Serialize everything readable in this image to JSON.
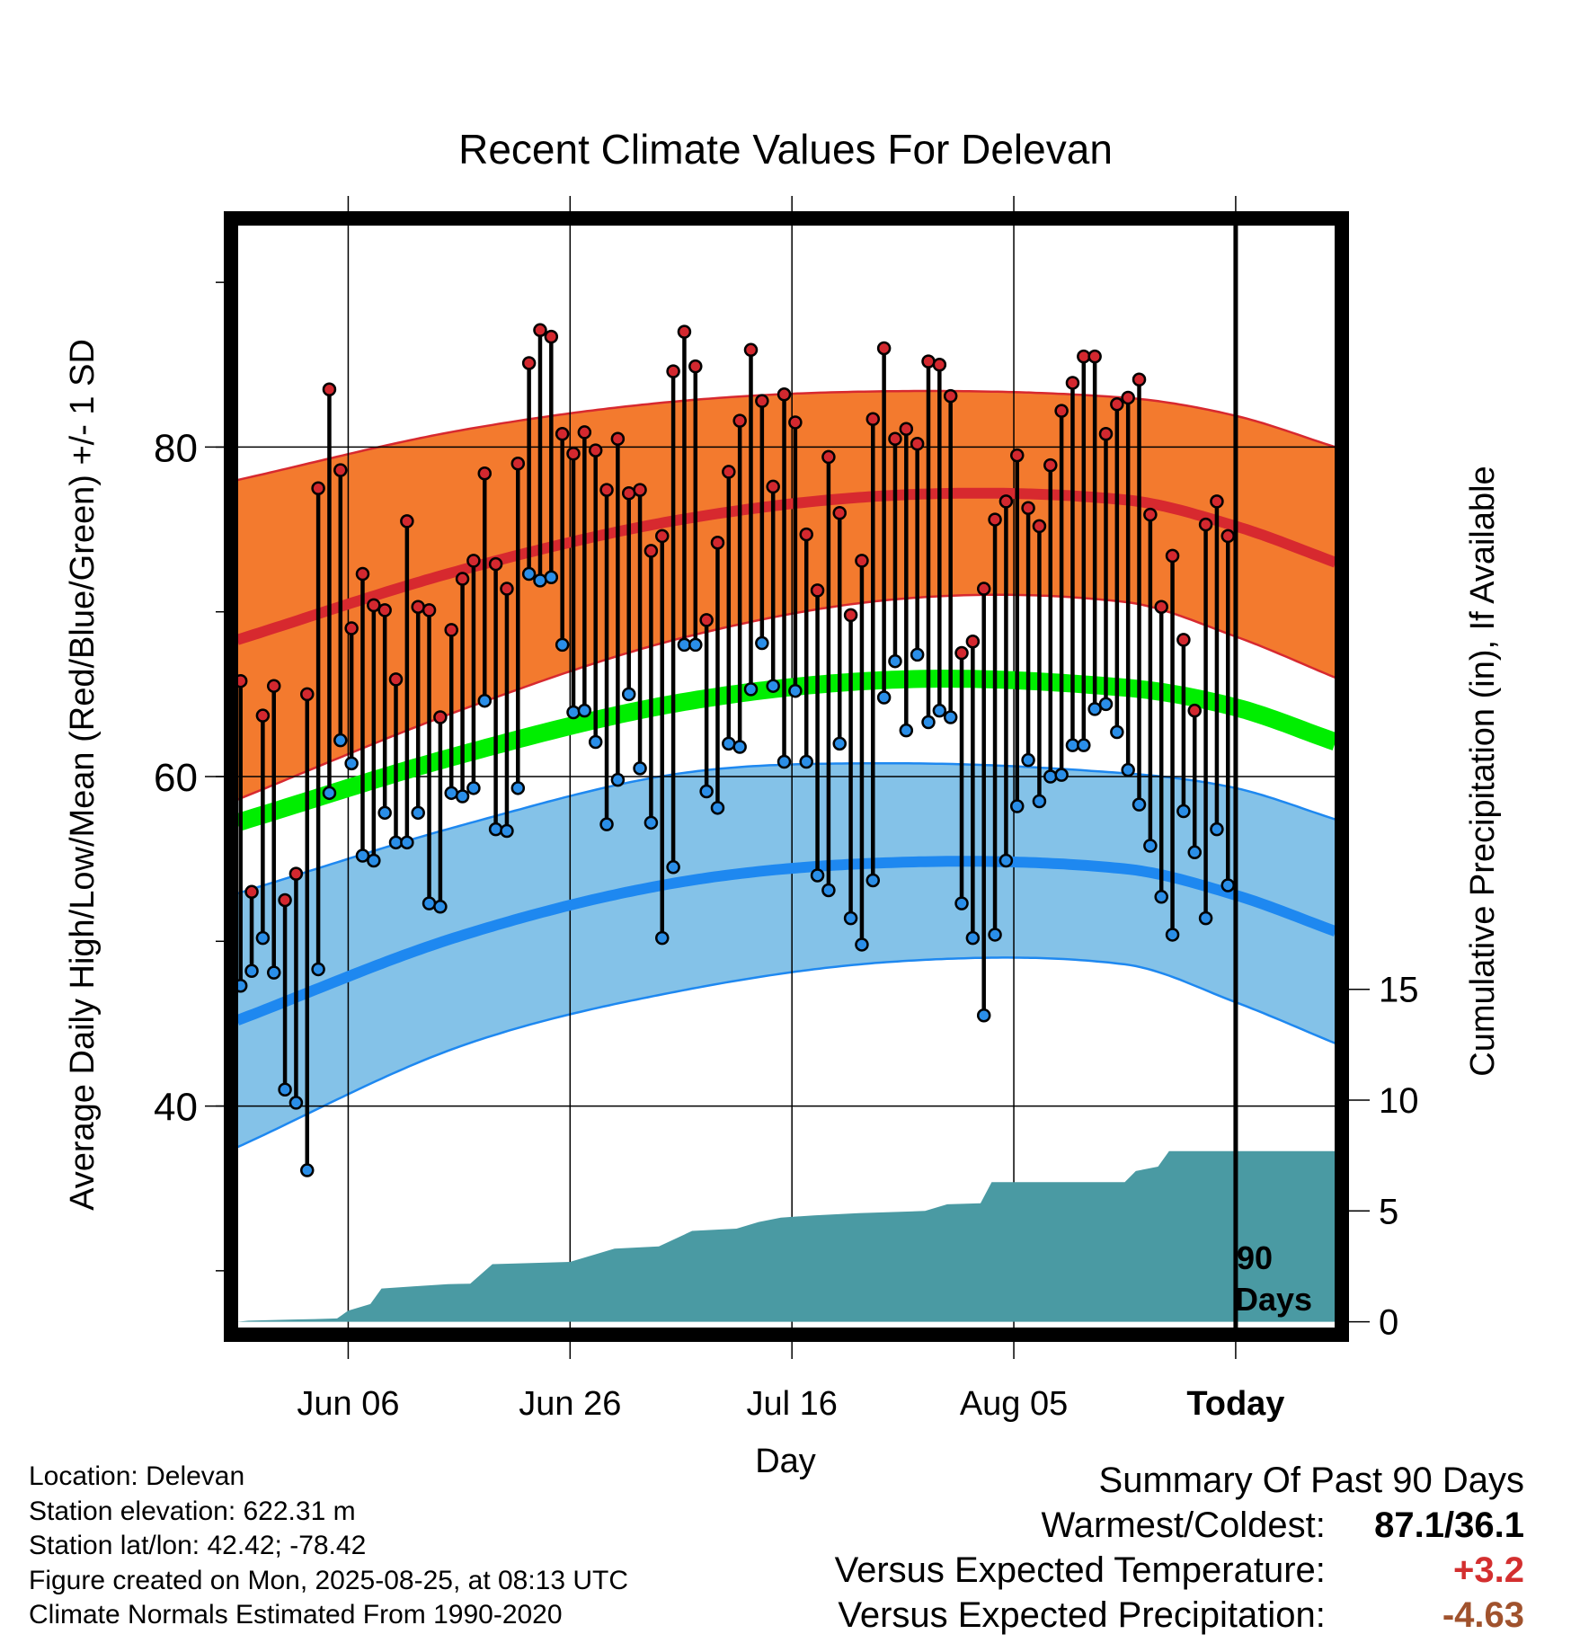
{
  "chart_data": {
    "type": "line",
    "title": "Recent Climate Values For Delevan",
    "xlabel": "Day",
    "ylabel": "Average Daily High/Low/Mean (Red/Blue/Green) +/- 1 SD",
    "y2label": "Cumulative Precipitation (in), If Available",
    "x_ticks": [
      "Jun 06",
      "Jun 26",
      "Jul 16",
      "Aug 05",
      "Today"
    ],
    "y_ticks": [
      "40",
      "60",
      "80"
    ],
    "y2_ticks": [
      "0",
      "5",
      "10",
      "15"
    ],
    "ylim": [
      26.5,
      93.5
    ],
    "y2lim": [
      -0.3,
      49.5
    ],
    "x_range_days": [
      -90,
      9
    ],
    "annotation": "90\nDays",
    "normal_high": [
      {
        "day": -90,
        "mean": 68.3,
        "sd": 9.7
      },
      {
        "day": -70,
        "mean": 72.5,
        "sd": 8.5
      },
      {
        "day": -50,
        "mean": 75.6,
        "sd": 7.2
      },
      {
        "day": -30,
        "mean": 77.1,
        "sd": 6.3
      },
      {
        "day": -10,
        "mean": 76.8,
        "sd": 6.2
      },
      {
        "day": 0,
        "mean": 75.2,
        "sd": 6.7
      },
      {
        "day": 9,
        "mean": 73.0,
        "sd": 7.0
      }
    ],
    "normal_mean": [
      {
        "day": -90,
        "mean": 57.2
      },
      {
        "day": -70,
        "mean": 61.3
      },
      {
        "day": -50,
        "mean": 64.5
      },
      {
        "day": -30,
        "mean": 65.9
      },
      {
        "day": -10,
        "mean": 65.4
      },
      {
        "day": 0,
        "mean": 64.2
      },
      {
        "day": 9,
        "mean": 62.1
      }
    ],
    "normal_low": [
      {
        "day": -90,
        "mean": 45.2,
        "sd": 7.7
      },
      {
        "day": -70,
        "mean": 50.3,
        "sd": 6.7
      },
      {
        "day": -50,
        "mean": 53.6,
        "sd": 6.6
      },
      {
        "day": -30,
        "mean": 54.8,
        "sd": 6.0
      },
      {
        "day": -10,
        "mean": 54.4,
        "sd": 5.8
      },
      {
        "day": 0,
        "mean": 52.8,
        "sd": 6.5
      },
      {
        "day": 9,
        "mean": 50.6,
        "sd": 6.8
      }
    ],
    "daily_high": [
      65.8,
      53.0,
      63.7,
      65.5,
      52.5,
      54.1,
      65.0,
      77.5,
      83.5,
      78.6,
      69.0,
      72.3,
      70.4,
      70.1,
      65.9,
      75.5,
      70.3,
      70.1,
      63.6,
      68.9,
      72.0,
      73.1,
      78.4,
      72.9,
      71.4,
      79.0,
      85.1,
      87.1,
      86.7,
      80.8,
      79.6,
      80.9,
      79.8,
      77.4,
      80.5,
      77.2,
      77.4,
      73.7,
      74.6,
      84.6,
      87.0,
      84.9,
      69.5,
      74.2,
      78.5,
      81.6,
      85.9,
      82.8,
      77.6,
      83.2,
      81.5,
      74.7,
      71.3,
      79.4,
      76.0,
      69.8,
      73.1,
      81.7,
      86.0,
      80.5,
      81.1,
      80.2,
      85.2,
      85.0,
      83.1,
      67.5,
      68.2,
      71.4,
      75.6,
      76.7,
      79.5,
      76.3,
      75.2,
      78.9,
      82.2,
      83.9,
      85.5,
      85.5,
      80.8,
      82.6,
      83.0,
      84.1,
      75.9,
      70.3,
      73.4,
      68.3,
      64.0,
      75.3,
      76.7,
      74.6
    ],
    "daily_low": [
      47.3,
      48.2,
      50.2,
      48.1,
      41.0,
      40.2,
      36.1,
      48.3,
      59.0,
      62.2,
      60.8,
      55.2,
      54.9,
      57.8,
      56.0,
      56.0,
      57.8,
      52.3,
      52.1,
      59.0,
      58.8,
      59.3,
      64.6,
      56.8,
      56.7,
      59.3,
      72.3,
      71.9,
      72.1,
      68.0,
      63.9,
      64.0,
      62.1,
      57.1,
      59.8,
      65.0,
      60.5,
      57.2,
      50.2,
      54.5,
      68.0,
      68.0,
      59.1,
      58.1,
      62.0,
      61.8,
      65.3,
      68.1,
      65.5,
      60.9,
      65.2,
      60.9,
      54.0,
      53.1,
      62.0,
      51.4,
      49.8,
      53.7,
      64.8,
      67.0,
      62.8,
      67.4,
      63.3,
      64.0,
      63.6,
      52.3,
      50.2,
      45.5,
      50.4,
      54.9,
      58.2,
      61.0,
      58.5,
      60.0,
      60.1,
      61.9,
      61.9,
      64.1,
      64.4,
      62.7,
      60.4,
      58.3,
      55.8,
      52.7,
      50.4,
      57.9,
      55.4,
      51.4,
      56.8,
      53.4
    ],
    "cumulative_precip": [
      {
        "day": -90,
        "value": 0.0
      },
      {
        "day": -89,
        "value": 0.05
      },
      {
        "day": -85,
        "value": 0.1
      },
      {
        "day": -83,
        "value": 0.12
      },
      {
        "day": -81,
        "value": 0.15
      },
      {
        "day": -80,
        "value": 0.5
      },
      {
        "day": -78,
        "value": 0.8
      },
      {
        "day": -77,
        "value": 1.5
      },
      {
        "day": -74,
        "value": 1.6
      },
      {
        "day": -71,
        "value": 1.7
      },
      {
        "day": -69,
        "value": 1.72
      },
      {
        "day": -67,
        "value": 2.6
      },
      {
        "day": -60,
        "value": 2.7
      },
      {
        "day": -58,
        "value": 3.0
      },
      {
        "day": -56,
        "value": 3.3
      },
      {
        "day": -52,
        "value": 3.4
      },
      {
        "day": -49,
        "value": 4.1
      },
      {
        "day": -45,
        "value": 4.2
      },
      {
        "day": -43,
        "value": 4.5
      },
      {
        "day": -41,
        "value": 4.7
      },
      {
        "day": -38,
        "value": 4.8
      },
      {
        "day": -34,
        "value": 4.9
      },
      {
        "day": -28,
        "value": 5.0
      },
      {
        "day": -26,
        "value": 5.3
      },
      {
        "day": -23,
        "value": 5.35
      },
      {
        "day": -22,
        "value": 6.3
      },
      {
        "day": -10,
        "value": 6.3
      },
      {
        "day": -9,
        "value": 6.8
      },
      {
        "day": -7,
        "value": 7.0
      },
      {
        "day": -6,
        "value": 7.7
      },
      {
        "day": 9,
        "value": 7.7
      }
    ]
  },
  "colors": {
    "high_band": "#f37a2e",
    "high_line": "#d7292f",
    "mean_line": "#00ee00",
    "low_band": "#84c2e8",
    "low_line": "#1e88f0",
    "precip_fill": "#4a9aa3",
    "high_marker": "#d3282f",
    "low_marker": "#2a8ee8"
  },
  "info": {
    "location": "Location: Delevan",
    "elevation": "Station elevation: 622.31 m",
    "latlon": "Station lat/lon: 42.42; -78.42",
    "created": "Figure created on Mon, 2025-08-25, at 08:13 UTC",
    "normals": "Climate Normals Estimated From 1990-2020"
  },
  "summary": {
    "title": "Summary Of Past 90 Days",
    "warmest_label": "Warmest/Coldest:",
    "warmest_value": "87.1/36.1",
    "temp_label": "Versus Expected Temperature:",
    "temp_value": "+3.2",
    "precip_label": "Versus Expected Precipitation:",
    "precip_value": "-4.63"
  }
}
